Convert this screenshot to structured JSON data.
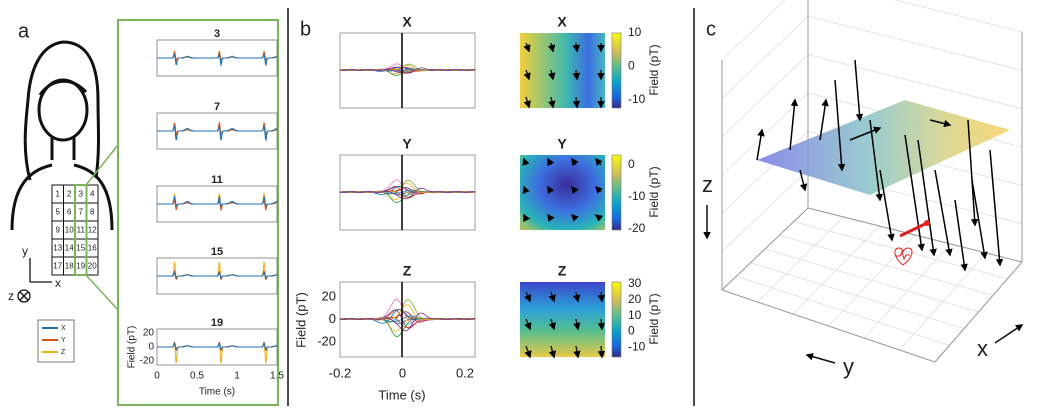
{
  "panel_a": {
    "label": "a",
    "grid_cells": [
      "1",
      "2",
      "3",
      "4",
      "5",
      "6",
      "7",
      "8",
      "9",
      "10",
      "11",
      "12",
      "13",
      "14",
      "15",
      "16",
      "17",
      "18",
      "19",
      "20"
    ],
    "axes": [
      "y",
      "z",
      "x"
    ],
    "legend": [
      "X",
      "Y",
      "Z"
    ],
    "plot_titles": [
      "3",
      "7",
      "11",
      "15",
      "19"
    ],
    "y_ticks": [
      "20",
      "0",
      "-20"
    ],
    "x_ticks": [
      "0",
      "0.5",
      "1",
      "1.5"
    ],
    "y_label": "Field (pT)",
    "x_label": "Time (s)"
  },
  "panel_b": {
    "label": "b",
    "row_titles": [
      "X",
      "Y",
      "Z"
    ],
    "y_ticks": [
      "20",
      "0",
      "-20"
    ],
    "x_ticks": [
      "-0.2",
      "0",
      "0.2"
    ],
    "y_label": "Field (pT)",
    "x_label": "Time (s)",
    "colorbars": [
      {
        "ticks": [
          "10",
          "0",
          "-10"
        ],
        "label": "Field (pT)"
      },
      {
        "ticks": [
          "0",
          "-10",
          "-20"
        ],
        "label": "Field (pT)"
      },
      {
        "ticks": [
          "30",
          "20",
          "10",
          "0",
          "-10"
        ],
        "label": "Field (pT)"
      }
    ]
  },
  "panel_c": {
    "label": "c",
    "z_label": "z",
    "y_label": "y",
    "x_label": "x"
  }
}
